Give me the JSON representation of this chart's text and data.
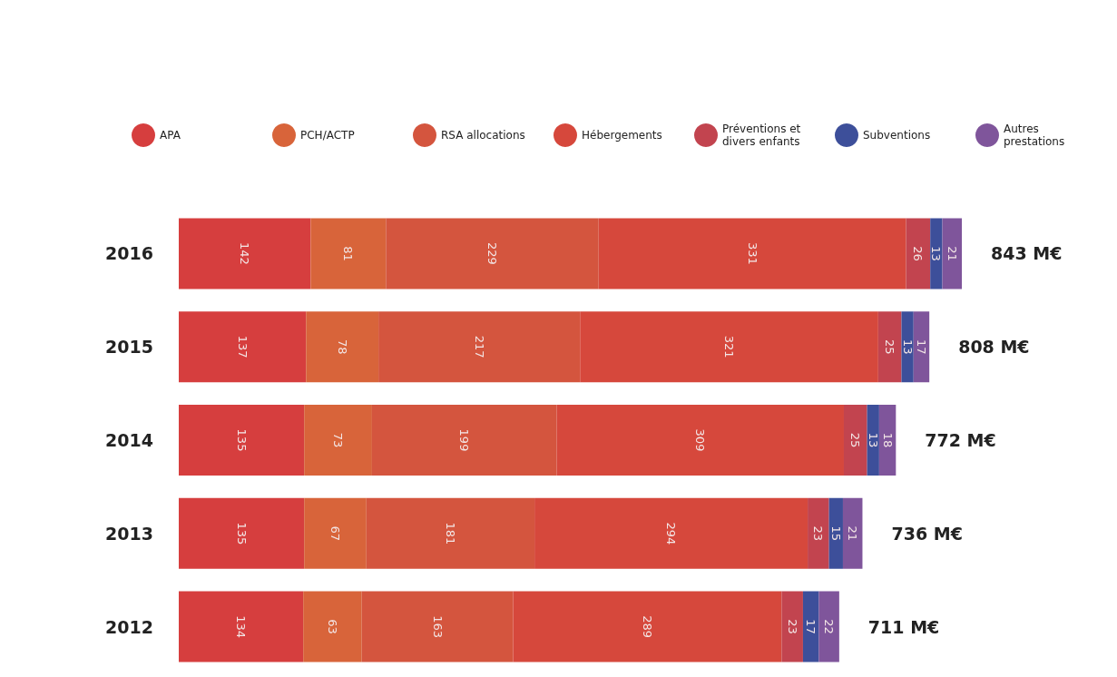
{
  "chart_data": {
    "type": "bar",
    "orientation": "horizontal",
    "stacked": true,
    "data_labels": true,
    "legend": "top left",
    "categories": [
      "2016",
      "2015",
      "2014",
      "2013",
      "2012"
    ],
    "series": [
      {
        "name": "APA",
        "color": "#d63e3e",
        "values": [
          142,
          137,
          135,
          135,
          134
        ]
      },
      {
        "name": "PCH/ACTP",
        "color": "#d8643a",
        "values": [
          81,
          78,
          73,
          67,
          63
        ]
      },
      {
        "name": "RSA allocations",
        "color": "#d4553e",
        "values": [
          229,
          217,
          199,
          181,
          163
        ]
      },
      {
        "name": "Hébergements",
        "color": "#d6483c",
        "values": [
          331,
          321,
          309,
          294,
          289
        ]
      },
      {
        "name": "Préventions et divers enfants",
        "color": "#c2444f",
        "values": [
          26,
          25,
          25,
          23,
          23
        ]
      },
      {
        "name": "Subventions",
        "color": "#3d4f9a",
        "values": [
          13,
          13,
          13,
          15,
          17
        ]
      },
      {
        "name": "Autres prestations",
        "color": "#7f559b",
        "values": [
          21,
          17,
          18,
          21,
          22
        ]
      }
    ],
    "totals": [
      "843 M€",
      "808 M€",
      "772 M€",
      "736 M€",
      "711 M€"
    ]
  }
}
